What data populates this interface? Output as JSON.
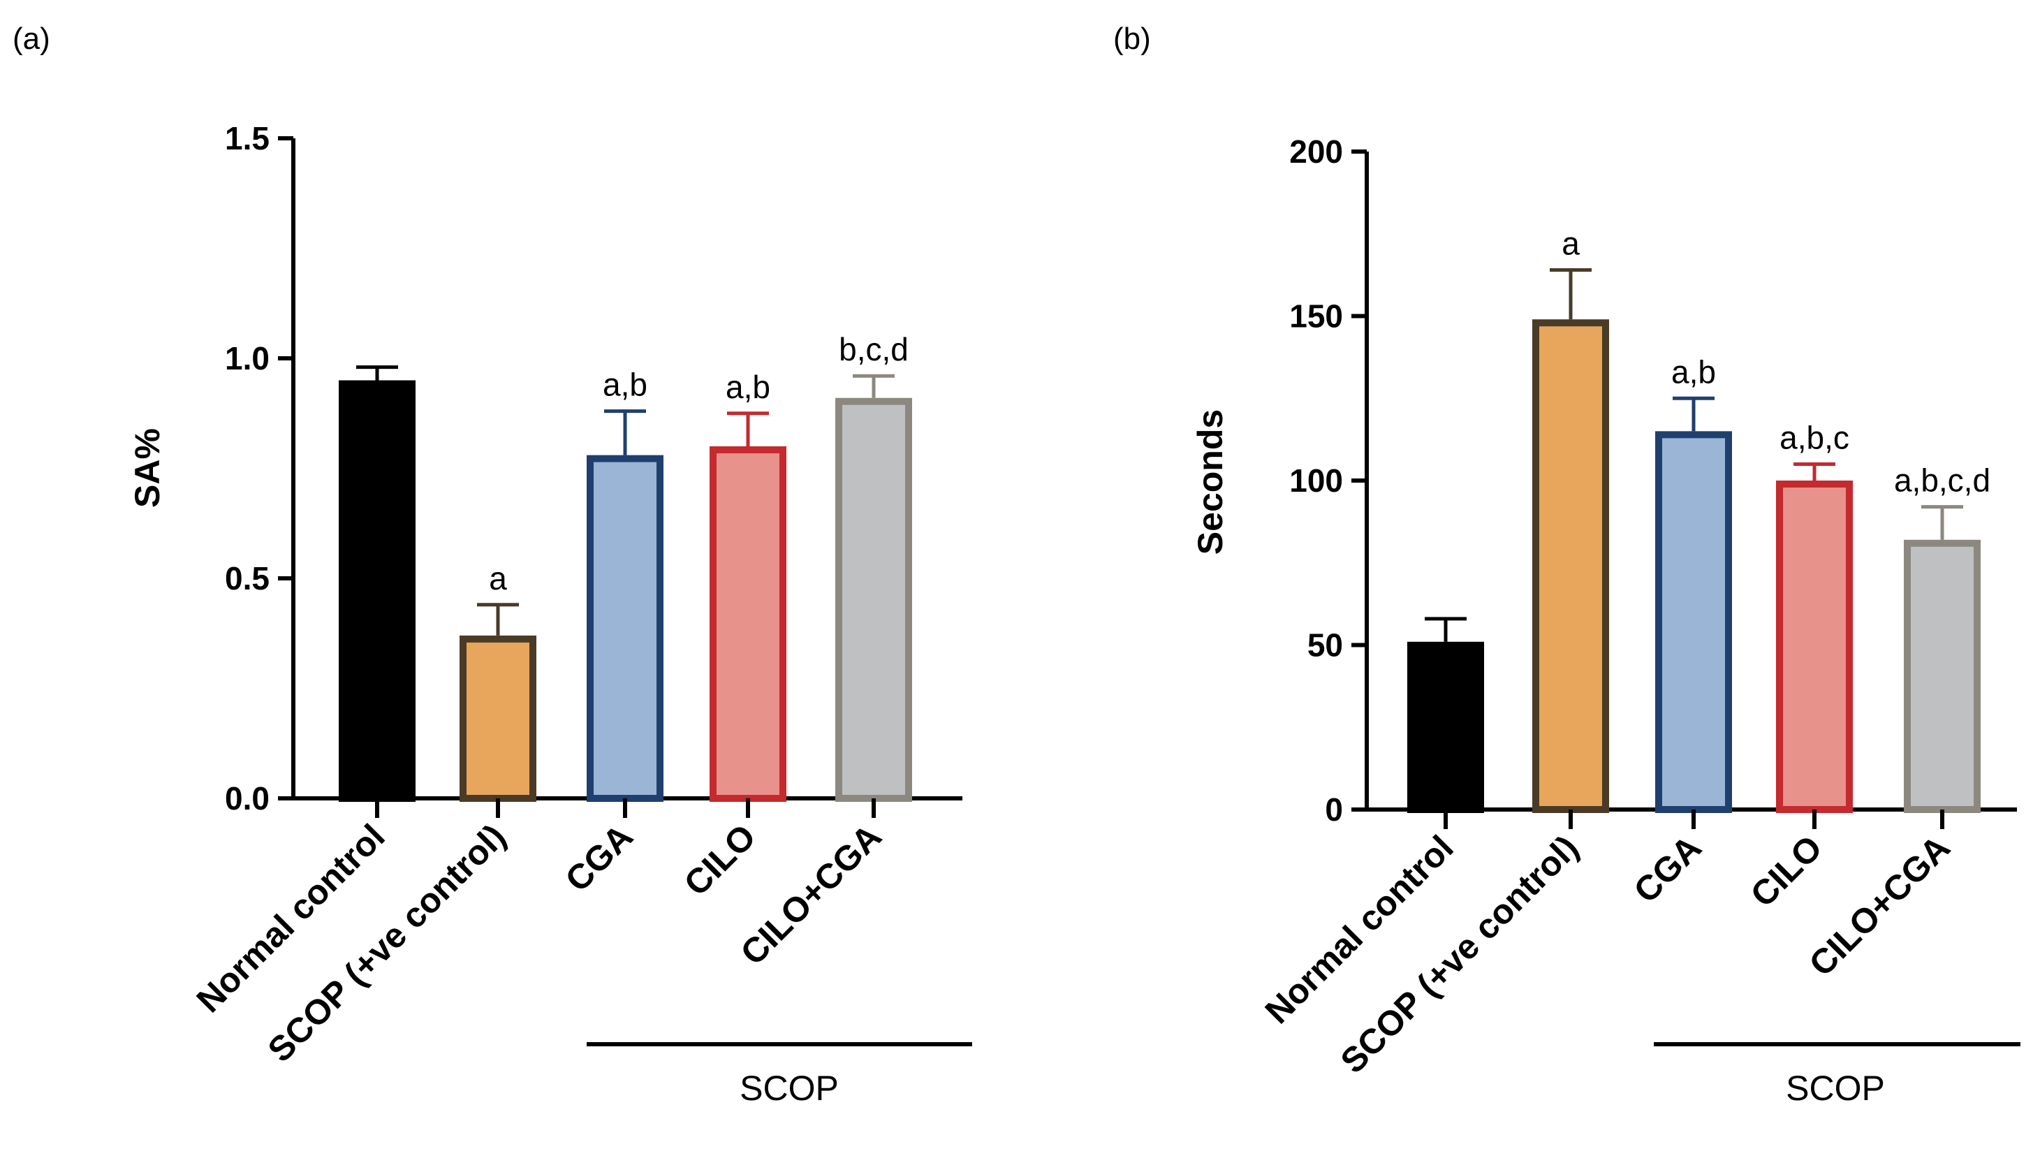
{
  "chart_data": [
    {
      "panel": "(a)",
      "type": "bar",
      "categories": [
        "Normal control",
        "SCOP (+ve control)",
        "CGA",
        "CILO",
        "CILO+CGA"
      ],
      "values": [
        0.95,
        0.37,
        0.78,
        0.8,
        0.91
      ],
      "errors": [
        0.03,
        0.07,
        0.1,
        0.075,
        0.05
      ],
      "significance": [
        "",
        "a",
        "a,b",
        "a,b",
        "b,c,d"
      ],
      "fill_colors": [
        "#000000",
        "#E8A55C",
        "#9AB5D6",
        "#E8928C",
        "#BEC0C2"
      ],
      "edge_colors": [
        "#000000",
        "#4A3B26",
        "#1F3F6E",
        "#C42A2E",
        "#8C8880"
      ],
      "ylabel": "SA%",
      "ylim": [
        0,
        1.5
      ],
      "yticks": [
        "0.0",
        "0.5",
        "1.0",
        "1.5"
      ],
      "ytick_values": [
        0,
        0.5,
        1.0,
        1.5
      ],
      "group_label": "SCOP"
    },
    {
      "panel": "(b)",
      "type": "bar",
      "categories": [
        "Normal control",
        "SCOP (+ve control)",
        "CGA",
        "CILO",
        "CILO+CGA"
      ],
      "values": [
        51,
        149,
        115,
        100,
        82
      ],
      "errors": [
        7,
        15,
        10,
        5,
        10
      ],
      "significance": [
        "",
        "a",
        "a,b",
        "a,b,c",
        "a,b,c,d"
      ],
      "fill_colors": [
        "#000000",
        "#E8A55C",
        "#9AB5D6",
        "#E8928C",
        "#BEC0C2"
      ],
      "edge_colors": [
        "#000000",
        "#4A3B26",
        "#1F3F6E",
        "#C42A2E",
        "#8C8880"
      ],
      "ylabel": "Seconds",
      "ylim": [
        0,
        200
      ],
      "yticks": [
        "0",
        "50",
        "100",
        "150",
        "200"
      ],
      "ytick_values": [
        0,
        50,
        100,
        150,
        200
      ],
      "group_label": "SCOP"
    }
  ]
}
